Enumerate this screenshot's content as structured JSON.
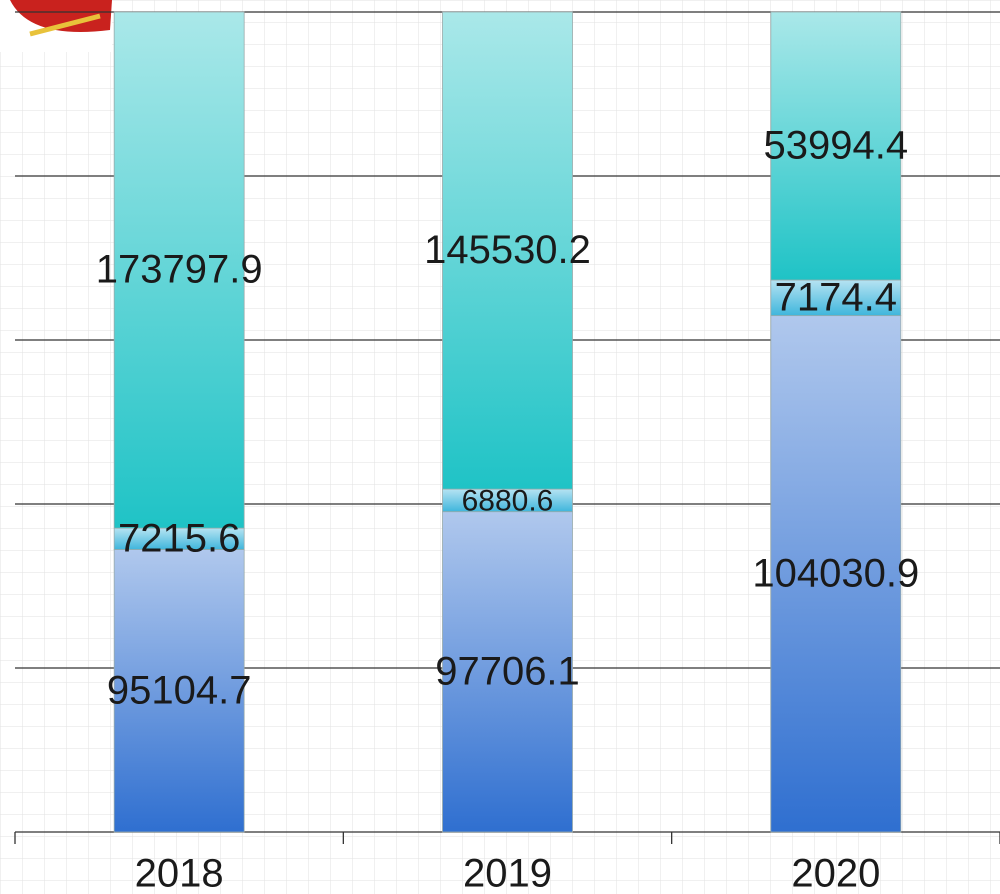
{
  "chart_data": {
    "type": "bar",
    "stacked": "percent",
    "categories": [
      "2018",
      "2019",
      "2020"
    ],
    "series": [
      {
        "color": "#2f6fd0",
        "values": [
          95104.7,
          97706.1,
          104030.9
        ]
      },
      {
        "color": "#3fb6dc",
        "values": [
          7215.6,
          6880.6,
          7174.4
        ]
      },
      {
        "color": "#1fc3c6",
        "values": [
          173797.9,
          145530.2,
          53994.4
        ]
      }
    ],
    "ylim": [
      0,
      100
    ],
    "yticks": [
      0,
      20,
      40,
      60,
      80,
      100
    ],
    "grid": true
  }
}
